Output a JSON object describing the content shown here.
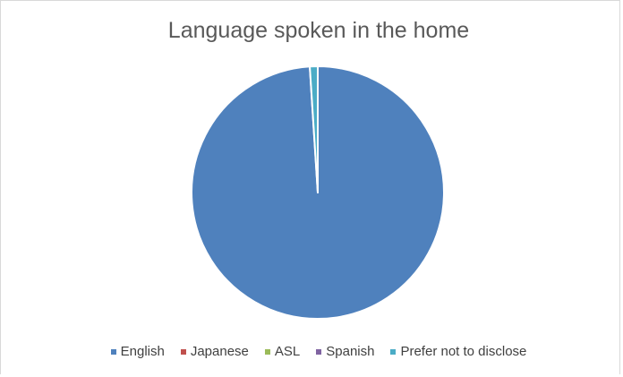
{
  "chart_data": {
    "type": "pie",
    "title": "Language spoken in the home",
    "categories": [
      "English",
      "Japanese",
      "ASL",
      "Spanish",
      "Prefer not to disclose"
    ],
    "values": [
      98,
      0,
      0,
      0,
      1
    ],
    "colors": [
      "#4f81bd",
      "#c0504d",
      "#9bbb59",
      "#8064a2",
      "#4bacc6"
    ],
    "legend_position": "bottom"
  }
}
